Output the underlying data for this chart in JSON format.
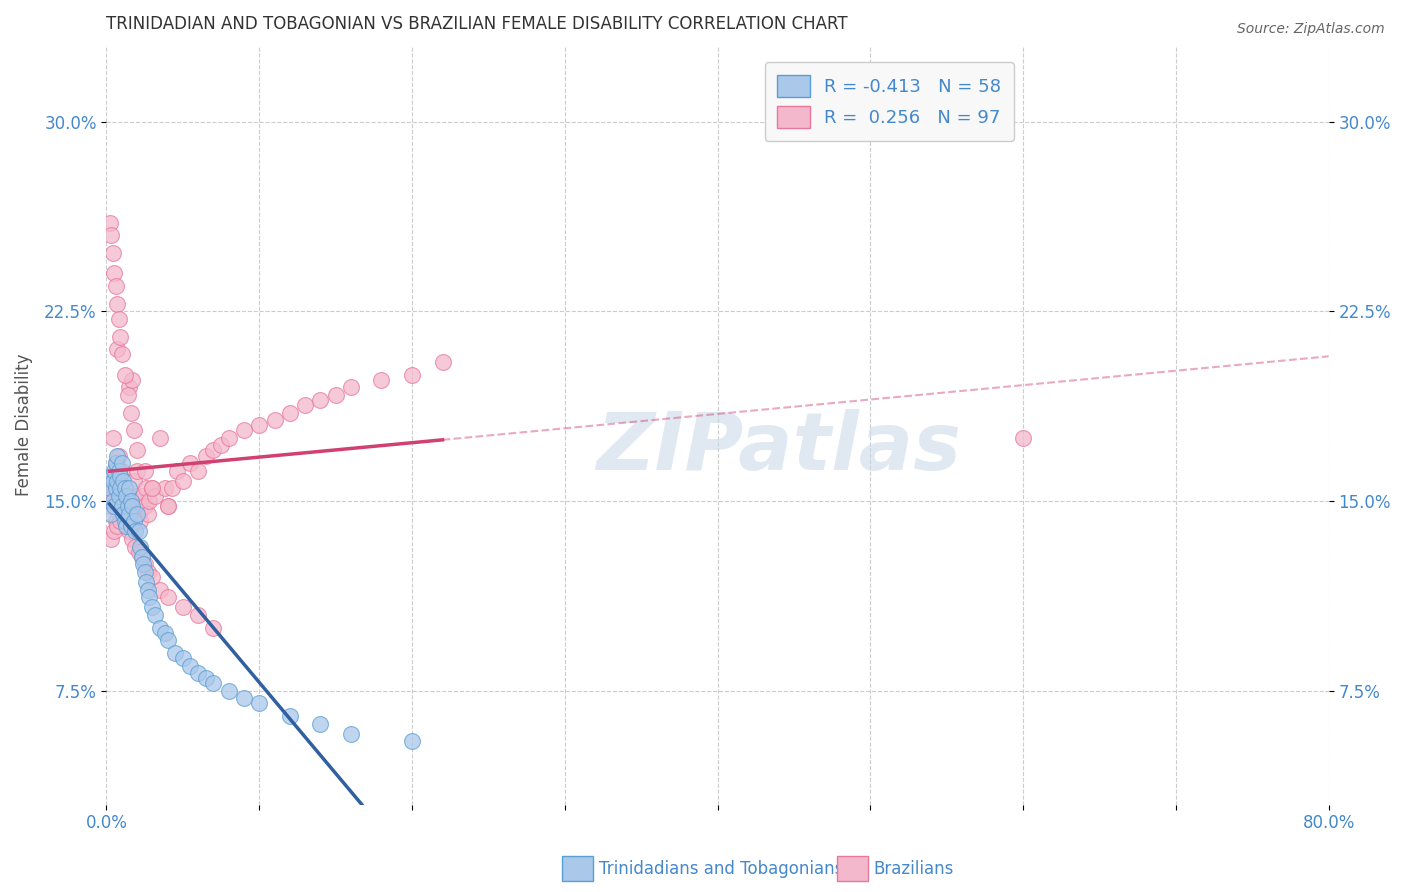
{
  "title": "TRINIDADIAN AND TOBAGONIAN VS BRAZILIAN FEMALE DISABILITY CORRELATION CHART",
  "source": "Source: ZipAtlas.com",
  "ylabel": "Female Disability",
  "xlim": [
    0.0,
    0.8
  ],
  "ylim": [
    0.03,
    0.33
  ],
  "yticks": [
    0.075,
    0.15,
    0.225,
    0.3
  ],
  "ytick_labels": [
    "7.5%",
    "15.0%",
    "22.5%",
    "30.0%"
  ],
  "xticks": [
    0.0,
    0.1,
    0.2,
    0.3,
    0.4,
    0.5,
    0.6,
    0.7,
    0.8
  ],
  "xtick_labels": [
    "0.0%",
    "",
    "",
    "",
    "",
    "",
    "",
    "",
    "80.0%"
  ],
  "blue_R": -0.413,
  "blue_N": 58,
  "pink_R": 0.256,
  "pink_N": 97,
  "blue_color": "#aac8ea",
  "pink_color": "#f4b8cc",
  "blue_edge_color": "#5a9fd4",
  "pink_edge_color": "#e8789a",
  "blue_line_color": "#3060a0",
  "pink_line_color": "#d04070",
  "watermark": "ZIPatlas",
  "legend_blue_label": "Trinidadians and Tobagonians",
  "legend_pink_label": "Brazilians",
  "blue_scatter_x": [
    0.002,
    0.003,
    0.003,
    0.004,
    0.004,
    0.005,
    0.005,
    0.006,
    0.006,
    0.007,
    0.007,
    0.008,
    0.008,
    0.009,
    0.009,
    0.01,
    0.01,
    0.011,
    0.011,
    0.012,
    0.012,
    0.013,
    0.013,
    0.014,
    0.015,
    0.015,
    0.016,
    0.016,
    0.017,
    0.018,
    0.019,
    0.02,
    0.021,
    0.022,
    0.023,
    0.024,
    0.025,
    0.026,
    0.027,
    0.028,
    0.03,
    0.032,
    0.035,
    0.038,
    0.04,
    0.045,
    0.05,
    0.055,
    0.06,
    0.065,
    0.07,
    0.08,
    0.09,
    0.1,
    0.12,
    0.14,
    0.16,
    0.2
  ],
  "blue_scatter_y": [
    0.155,
    0.16,
    0.145,
    0.158,
    0.15,
    0.162,
    0.148,
    0.165,
    0.155,
    0.168,
    0.158,
    0.162,
    0.152,
    0.16,
    0.155,
    0.165,
    0.148,
    0.158,
    0.145,
    0.155,
    0.142,
    0.152,
    0.14,
    0.148,
    0.155,
    0.145,
    0.15,
    0.14,
    0.148,
    0.142,
    0.138,
    0.145,
    0.138,
    0.132,
    0.128,
    0.125,
    0.122,
    0.118,
    0.115,
    0.112,
    0.108,
    0.105,
    0.1,
    0.098,
    0.095,
    0.09,
    0.088,
    0.085,
    0.082,
    0.08,
    0.078,
    0.075,
    0.072,
    0.07,
    0.065,
    0.062,
    0.058,
    0.055
  ],
  "pink_scatter_x": [
    0.002,
    0.003,
    0.004,
    0.004,
    0.005,
    0.006,
    0.006,
    0.007,
    0.008,
    0.008,
    0.009,
    0.01,
    0.01,
    0.011,
    0.012,
    0.012,
    0.013,
    0.014,
    0.015,
    0.015,
    0.016,
    0.017,
    0.018,
    0.018,
    0.019,
    0.02,
    0.02,
    0.021,
    0.022,
    0.023,
    0.024,
    0.025,
    0.026,
    0.027,
    0.028,
    0.03,
    0.032,
    0.035,
    0.038,
    0.04,
    0.043,
    0.046,
    0.05,
    0.055,
    0.06,
    0.065,
    0.07,
    0.075,
    0.08,
    0.09,
    0.1,
    0.11,
    0.12,
    0.13,
    0.14,
    0.15,
    0.16,
    0.18,
    0.2,
    0.22,
    0.003,
    0.005,
    0.007,
    0.009,
    0.011,
    0.013,
    0.015,
    0.017,
    0.019,
    0.021,
    0.023,
    0.025,
    0.027,
    0.03,
    0.035,
    0.04,
    0.05,
    0.06,
    0.07,
    0.002,
    0.003,
    0.004,
    0.005,
    0.006,
    0.007,
    0.008,
    0.009,
    0.01,
    0.012,
    0.014,
    0.016,
    0.018,
    0.02,
    0.025,
    0.03,
    0.04,
    0.6
  ],
  "pink_scatter_y": [
    0.148,
    0.16,
    0.152,
    0.175,
    0.155,
    0.142,
    0.165,
    0.21,
    0.148,
    0.168,
    0.155,
    0.142,
    0.162,
    0.148,
    0.155,
    0.14,
    0.148,
    0.145,
    0.152,
    0.195,
    0.148,
    0.198,
    0.145,
    0.158,
    0.15,
    0.148,
    0.162,
    0.145,
    0.142,
    0.148,
    0.152,
    0.148,
    0.155,
    0.145,
    0.15,
    0.155,
    0.152,
    0.175,
    0.155,
    0.148,
    0.155,
    0.162,
    0.158,
    0.165,
    0.162,
    0.168,
    0.17,
    0.172,
    0.175,
    0.178,
    0.18,
    0.182,
    0.185,
    0.188,
    0.19,
    0.192,
    0.195,
    0.198,
    0.2,
    0.205,
    0.135,
    0.138,
    0.14,
    0.142,
    0.145,
    0.148,
    0.138,
    0.135,
    0.132,
    0.13,
    0.128,
    0.125,
    0.122,
    0.12,
    0.115,
    0.112,
    0.108,
    0.105,
    0.1,
    0.26,
    0.255,
    0.248,
    0.24,
    0.235,
    0.228,
    0.222,
    0.215,
    0.208,
    0.2,
    0.192,
    0.185,
    0.178,
    0.17,
    0.162,
    0.155,
    0.148,
    0.175
  ]
}
